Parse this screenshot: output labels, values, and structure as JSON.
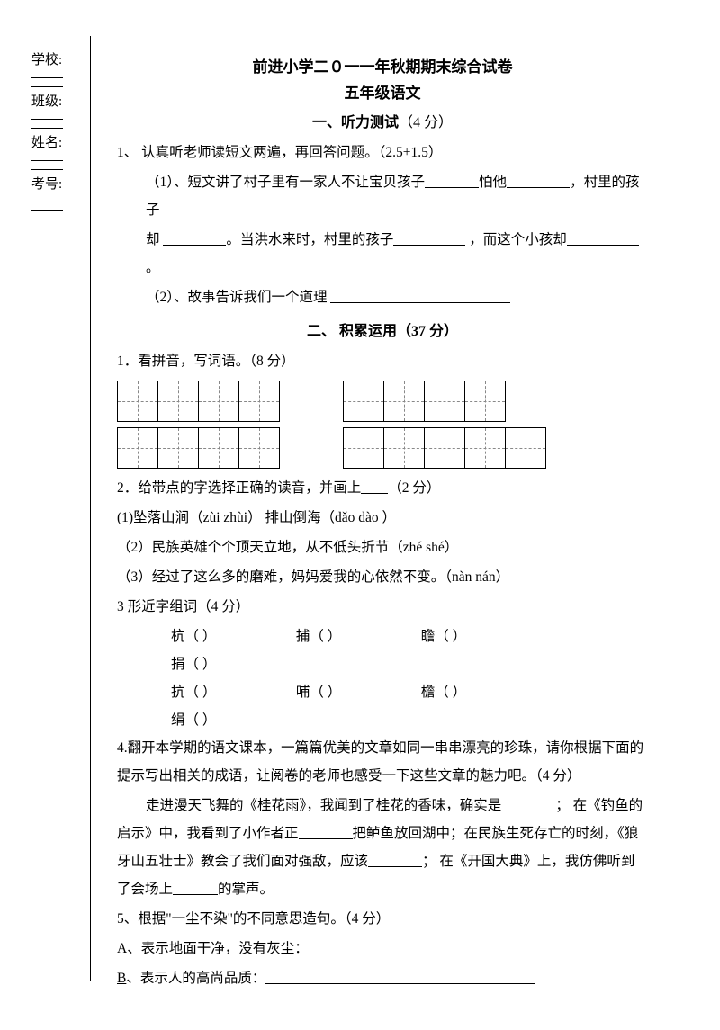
{
  "margin": {
    "school": "学校:",
    "class": "班级:",
    "name": "姓名:",
    "examNo": "考号:"
  },
  "title": "前进小学二０一一年秋期期末综合试卷",
  "subtitle": "五年级语文",
  "section1": {
    "header": "一、听力测试",
    "points": "（4 分）",
    "q1_intro": "1、 认真听老师读短文两遍，再回答问题。（2.5+1.5）",
    "q1_1a": "（1）、短文讲了村子里有一家人不让宝贝孩子",
    "q1_1b": "怕他",
    "q1_1c": "，村里的孩子",
    "q1_1d": "却",
    "q1_1e": "。当洪水来时，村里的孩子",
    "q1_1f": "，而这个小孩却",
    "q1_1g": "。",
    "q1_2": "（2）、故事告诉我们一个道理"
  },
  "section2": {
    "header": "二、 积累运用（37 分）",
    "q1": "1．看拼音，写词语。（8 分）",
    "q2_intro": "2．给带点的字选择正确的读音，并画上",
    "q2_points": "（2 分）",
    "q2_1": "(1)坠落山涧（zùi  zhùi）   排山倒海（dǎo   dào ）",
    "q2_2": "（2）民族英雄个个顶天立地，从不低头折节（zhé  shé）",
    "q2_3": "（3）经过了这么多的磨难，妈妈爱我的心依然不变。（nàn   nán）",
    "q3_intro": "3 形近字组词（4 分）",
    "q3_row1": [
      "杭（       ）",
      "捕（       ）",
      "瞻（       ）",
      "捐（       ）"
    ],
    "q3_row2": [
      "抗（       ）",
      "哺（       ）",
      "檐（       ）",
      "绢（       ）"
    ],
    "q4_a": "4.翻开本学期的语文课本，一篇篇优美的文章如同一串串漂亮的珍珠，请你根据下面的提示写出相关的成语，让阅卷的老师也感受一下这些文章的魅力吧。（4 分）",
    "q4_b1": "走进漫天飞舞的《桂花雨》，我闻到了桂花的香味，确实是",
    "q4_b2": "； 在《钓鱼的启示》中，我看到了小作者正",
    "q4_b3": "把鲈鱼放回湖中；在民族生死存亡的时刻，《狼牙山五壮士》教会了我们面对强敌，应该",
    "q4_b4": "； 在《开国大典》上，我仿佛听到了会场上",
    "q4_b5": "的掌声。",
    "q5_intro": "5、根据\"一尘不染\"的不同意思造句。（4 分）",
    "q5_a": "A、表示地面干净，没有灰尘：",
    "q5_b_letter": "B",
    "q5_b_rest": "、表示人的高尚品质："
  },
  "boxes": {
    "row1_group1_count": 4,
    "row1_group2_count": 4,
    "row2_group1_count": 4,
    "row2_group2_count": 5
  },
  "colors": {
    "text": "#000000",
    "bg": "#ffffff",
    "dash": "#888888"
  }
}
